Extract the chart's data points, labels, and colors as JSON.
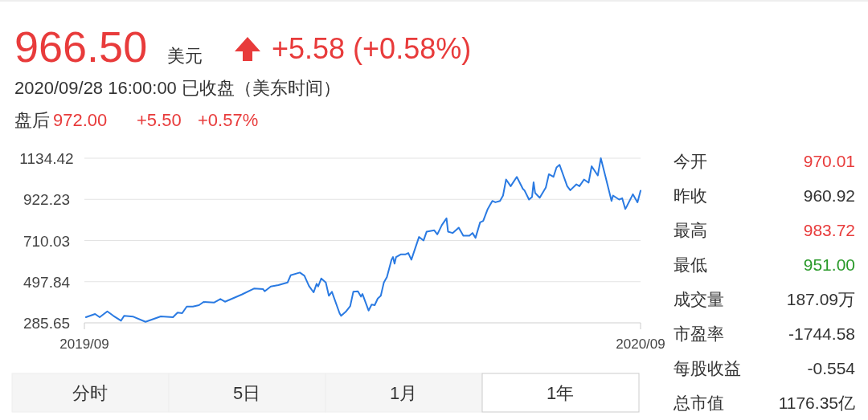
{
  "chart_data": {
    "type": "line",
    "annotations": [
      "966.50",
      "美元",
      "+5.58 (+0.58%)",
      "2020/09/28 16:00:00  已收盘（美东时间）",
      "盘后",
      "972.00",
      "+5.50",
      "+0.57%",
      "今开",
      "970.01",
      "昨收",
      "960.92",
      "最高",
      "983.72",
      "最低",
      "951.00",
      "成交量",
      "187.09万",
      "市盈率",
      "-1744.58",
      "每股收益",
      "-0.554",
      "总市值",
      "1176.35亿",
      "分时",
      "5日",
      "1月",
      "1年"
    ],
    "x": [
      "2019-10-01",
      "2019-10-07",
      "2019-10-10",
      "2019-10-15",
      "2019-10-19",
      "2019-10-24",
      "2019-10-26",
      "2019-11-01",
      "2019-11-09",
      "2019-11-19",
      "2019-11-27",
      "2019-11-30",
      "2019-12-03",
      "2019-12-06",
      "2019-12-10",
      "2019-12-14",
      "2019-12-17",
      "2019-12-24",
      "2019-12-28",
      "2019-12-31",
      "2020-01-11",
      "2020-01-19",
      "2020-01-25",
      "2020-01-26",
      "2020-01-30",
      "2020-02-04",
      "2020-02-10",
      "2020-02-12",
      "2020-02-18",
      "2020-02-21",
      "2020-02-24",
      "2020-02-27",
      "2020-02-29",
      "2020-03-01",
      "2020-03-03",
      "2020-03-06",
      "2020-03-08",
      "2020-03-10",
      "2020-03-15",
      "2020-03-16",
      "2020-03-19",
      "2020-03-22",
      "2020-03-24",
      "2020-03-27",
      "2020-03-29",
      "2020-03-30",
      "2020-04-03",
      "2020-04-05",
      "2020-04-07",
      "2020-04-09",
      "2020-04-11",
      "2020-04-13",
      "2020-04-15",
      "2020-04-18",
      "2020-04-19",
      "2020-04-20",
      "2020-04-21",
      "2020-04-24",
      "2020-04-27",
      "2020-04-29",
      "2020-05-01",
      "2020-05-06",
      "2020-05-09",
      "2020-05-11",
      "2020-05-16",
      "2020-05-18",
      "2020-05-21",
      "2020-05-24",
      "2020-05-25",
      "2020-05-28",
      "2020-06-01",
      "2020-06-04",
      "2020-06-08",
      "2020-06-10",
      "2020-06-12",
      "2020-06-15",
      "2020-06-17",
      "2020-06-20",
      "2020-06-23",
      "2020-06-25",
      "2020-06-28",
      "2020-06-30",
      "2020-07-02",
      "2020-07-05",
      "2020-07-09",
      "2020-07-13",
      "2020-07-14",
      "2020-07-17",
      "2020-07-19",
      "2020-07-20",
      "2020-07-21",
      "2020-07-24",
      "2020-07-28",
      "2020-07-30",
      "2020-08-02",
      "2020-08-04",
      "2020-08-06",
      "2020-08-11",
      "2020-08-13",
      "2020-08-17",
      "2020-08-19",
      "2020-08-22",
      "2020-08-25",
      "2020-08-27",
      "2020-08-31",
      "2020-09-02",
      "2020-09-05",
      "2020-09-09",
      "2020-09-10",
      "2020-09-14",
      "2020-09-16",
      "2020-09-18",
      "2020-09-19",
      "2020-09-23",
      "2020-09-26",
      "2020-09-28"
    ],
    "series": [
      {
        "color": "#2a7ae2",
        "values": [
          314.6,
          331.1,
          314.6,
          344.8,
          321.6,
          296.7,
          321.6,
          317.4,
          291.0,
          318.7,
          314.6,
          338.1,
          335.3,
          369.6,
          369.6,
          376.6,
          393.2,
          390.3,
          408.4,
          394.5,
          431.7,
          462.2,
          459.3,
          448.2,
          473.0,
          480.0,
          493.7,
          530.9,
          544.9,
          528.4,
          475.9,
          442.8,
          487.0,
          473.0,
          514.3,
          493.7,
          425.0,
          445.7,
          335.3,
          321.6,
          342.3,
          372.5,
          445.7,
          448.2,
          420.9,
          434.5,
          349.0,
          379.5,
          376.6,
          411.0,
          425.0,
          493.7,
          521.3,
          611.1,
          624.7,
          590.4,
          624.7,
          638.4,
          638.4,
          645.4,
          611.1,
          728.1,
          710.3,
          755.8,
          762.4,
          741.8,
          790.1,
          824.4,
          755.8,
          748.8,
          776.5,
          735.1,
          735.1,
          748.8,
          723.9,
          803.8,
          810.8,
          872.8,
          914.2,
          907.1,
          914.2,
          941.9,
          1024.6,
          989.9,
          1038.2,
          976.2,
          969.2,
          921.2,
          934.8,
          1010.5,
          955.5,
          930.7,
          983.2,
          1051.9,
          1038.2,
          1086.6,
          1100.3,
          989.9,
          969.2,
          999.8,
          989.9,
          1024.6,
          1008.0,
          1093.2,
          1045.3,
          1134.0,
          1041.1,
          914.2,
          941.9,
          921.2,
          927.8,
          872.8,
          886.5,
          948.5,
          907.1,
          966.5
        ]
      }
    ],
    "xlim": [
      "2019-09-30",
      "2020-09-28"
    ],
    "xticks": [
      {
        "value": "2019-09-30",
        "label": "2019/09"
      },
      {
        "value": "2020-09-28",
        "label": "2020/09"
      }
    ],
    "ylim": [
      285.65,
      1134.42
    ],
    "yticks": [
      285.65,
      497.84,
      710.03,
      922.23,
      1134.42
    ],
    "grid": "y",
    "marker": "none",
    "line_style": "solid"
  }
}
